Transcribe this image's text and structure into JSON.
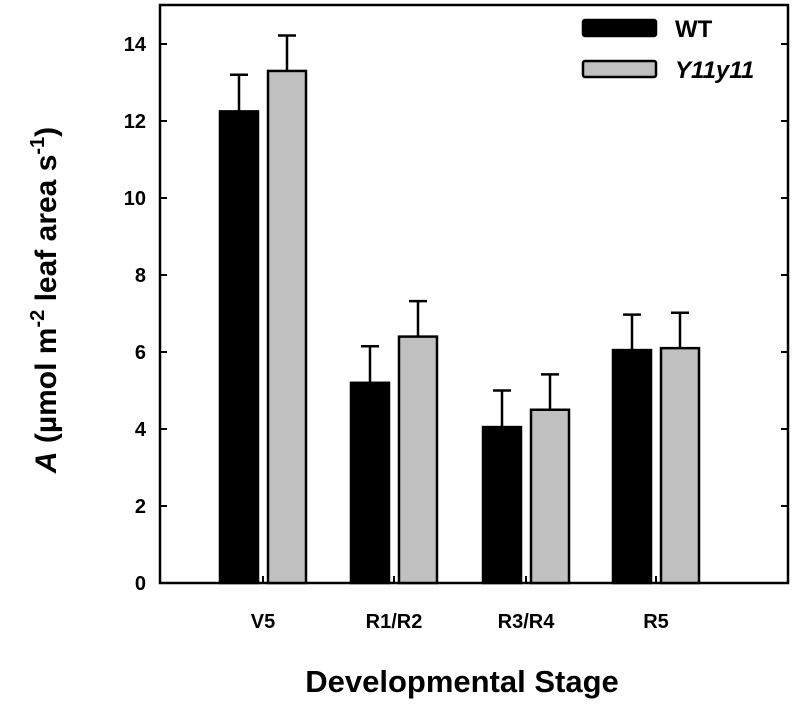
{
  "chart_data": {
    "type": "bar",
    "title": "",
    "xlabel": "Developmental Stage",
    "ylabel": {
      "italic": "A",
      "main": " (µmol m",
      "sup1": "-2",
      "mid": " leaf area s",
      "sup2": "-1",
      "end": ")"
    },
    "categories": [
      "V5",
      "R1/R2",
      "R3/R4",
      "R5"
    ],
    "ylim": [
      0,
      14
    ],
    "yticks": [
      0,
      2,
      4,
      6,
      8,
      10,
      12,
      14
    ],
    "legend_position": "top-right",
    "series": [
      {
        "name": "WT",
        "color": "#000000",
        "values": [
          12.25,
          5.2,
          4.05,
          6.05
        ],
        "errors": [
          0.95,
          0.95,
          0.95,
          0.92
        ]
      },
      {
        "name": "Y11y11",
        "color": "#c0c0c0",
        "values": [
          13.3,
          6.4,
          4.5,
          6.1
        ],
        "errors": [
          0.92,
          0.92,
          0.92,
          0.92
        ]
      }
    ]
  }
}
